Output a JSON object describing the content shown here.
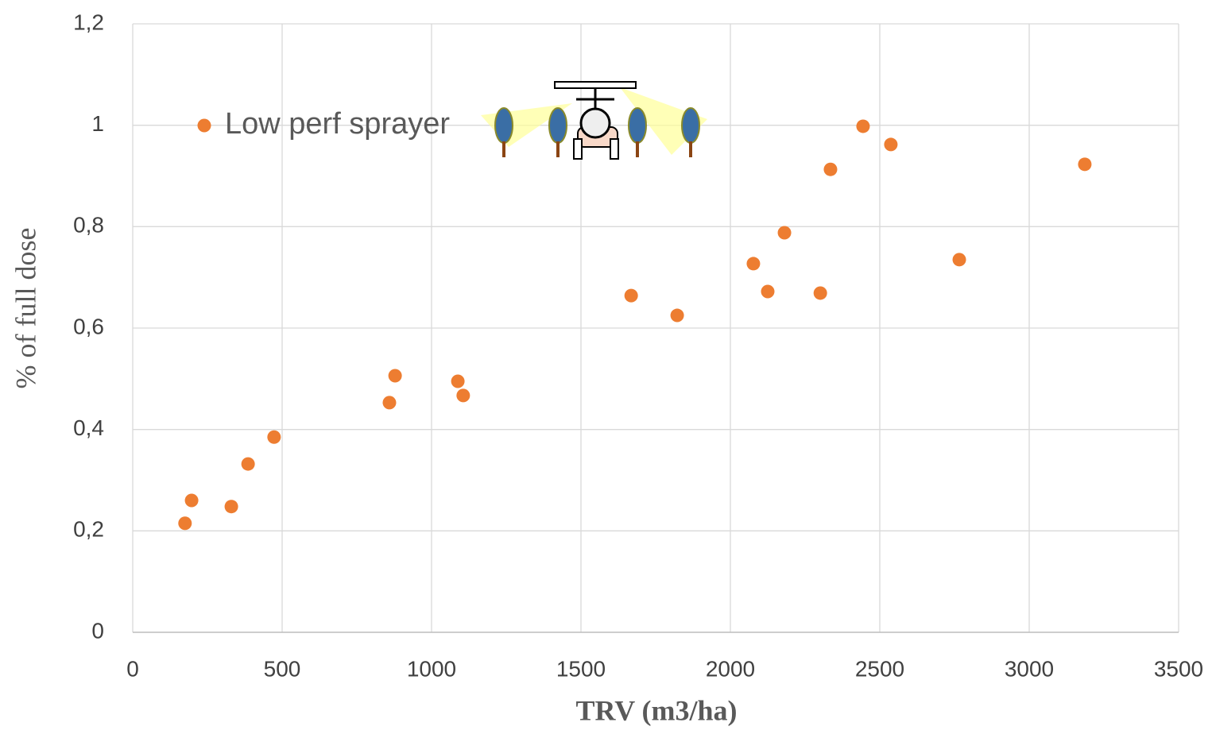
{
  "chart_data": {
    "type": "scatter",
    "x_label": "TRV (m3/ha)",
    "y_label": "% of full dose",
    "legend": "upper left",
    "grid": true,
    "series": [
      {
        "name": "Low perf sprayer",
        "color": "#ed7d31",
        "x": [
          175,
          197,
          330,
          386,
          473,
          859,
          878,
          1088,
          1106,
          1668,
          1822,
          2077,
          2125,
          2181,
          2301,
          2335,
          2444,
          2537,
          2766,
          3186
        ],
        "values": [
          0.215,
          0.26,
          0.248,
          0.332,
          0.385,
          0.453,
          0.506,
          0.495,
          0.467,
          0.664,
          0.625,
          0.727,
          0.672,
          0.788,
          0.669,
          0.913,
          0.998,
          0.962,
          0.735,
          0.923
        ]
      }
    ],
    "xlim": [
      0,
      3500
    ],
    "xticks": [
      0,
      500,
      1000,
      1500,
      2000,
      2500,
      3000,
      3500
    ],
    "ylim": [
      0,
      1.2
    ],
    "yticks": [
      0,
      {
        "value": 0.2,
        "label": "0,2"
      },
      {
        "value": 0.4,
        "label": "0,4"
      },
      {
        "value": 0.6,
        "label": "0,6"
      },
      {
        "value": 0.8,
        "label": "0,8"
      },
      1,
      {
        "value": 1.2,
        "label": "1,2"
      }
    ]
  }
}
